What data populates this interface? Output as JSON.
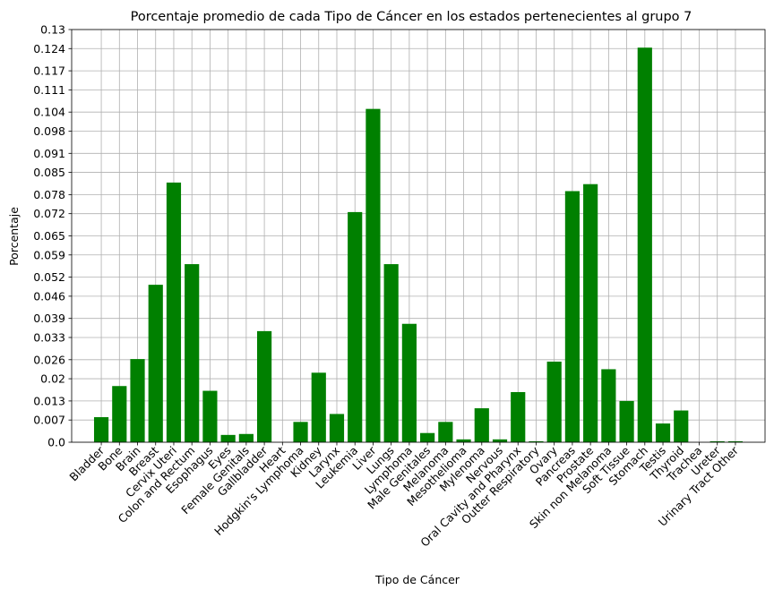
{
  "chart_data": {
    "type": "bar",
    "title": "Porcentaje promedio de cada Tipo de Cáncer en los estados pertenecientes al grupo 7",
    "xlabel": "Tipo de Cáncer",
    "ylabel": "Porcentaje",
    "bar_color": "#008000",
    "grid": true,
    "ylim": [
      0,
      0.13
    ],
    "yticks": [
      0.0,
      0.007,
      0.013,
      0.02,
      0.026,
      0.033,
      0.039,
      0.046,
      0.052,
      0.059,
      0.065,
      0.072,
      0.078,
      0.085,
      0.091,
      0.098,
      0.104,
      0.111,
      0.117,
      0.124,
      0.13
    ],
    "ytick_labels": [
      "0.0",
      "0.007",
      "0.013",
      "0.02",
      "0.026",
      "0.033",
      "0.039",
      "0.046",
      "0.052",
      "0.059",
      "0.065",
      "0.072",
      "0.078",
      "0.085",
      "0.091",
      "0.098",
      "0.104",
      "0.111",
      "0.117",
      "0.124",
      "0.13"
    ],
    "categories": [
      "Bladder",
      "Bone",
      "Brain",
      "Breast",
      "Cervix Uteri",
      "Colon and Rectum",
      "Esophagus",
      "Eyes",
      "Female Genitals",
      "Gallbladder",
      "Heart",
      "Hodgkin's Lymphoma",
      "Kidney",
      "Larynx",
      "Leukemia",
      "Liver",
      "Lungs",
      "Lymphoma",
      "Male Genitales",
      "Melanoma",
      "Mesothelioma",
      "Mylenoma",
      "Nervous",
      "Oral Cavity and Pharynx",
      "Outter Respiratory",
      "Ovary",
      "Pancreas",
      "Prostate",
      "Skin non Melanoma",
      "Soft Tissue",
      "Stomach",
      "Testis",
      "Thyroid",
      "Trachea",
      "Ureter",
      "Urinary Tract Other"
    ],
    "values": [
      0.0079,
      0.0177,
      0.0262,
      0.0496,
      0.0818,
      0.0561,
      0.0162,
      0.0023,
      0.0026,
      0.035,
      0.0,
      0.0064,
      0.0219,
      0.0089,
      0.0725,
      0.105,
      0.0561,
      0.0373,
      0.0029,
      0.0064,
      0.0009,
      0.0107,
      0.0009,
      0.0158,
      0.0003,
      0.0254,
      0.0791,
      0.0813,
      0.023,
      0.013,
      0.1243,
      0.0059,
      0.01,
      0.0,
      0.0003,
      0.0003
    ]
  }
}
